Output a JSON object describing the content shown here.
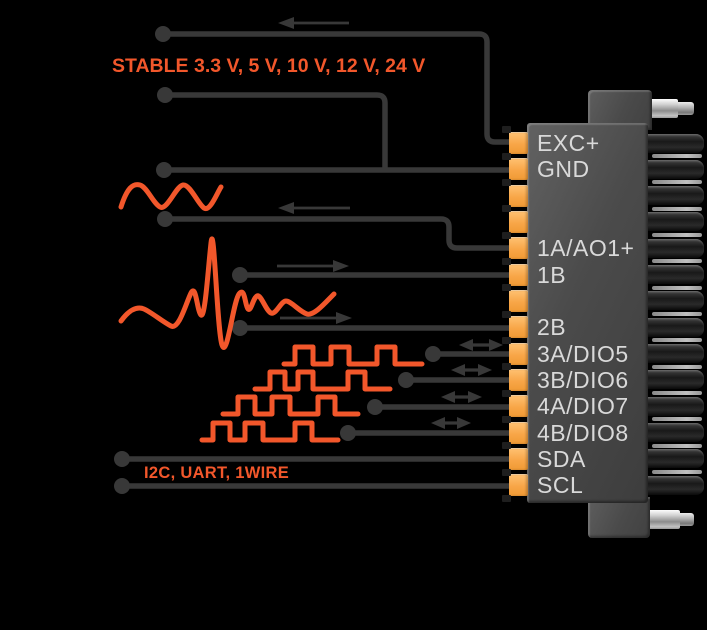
{
  "diagram": {
    "description": "Measurement module connector pinout with signal wiring",
    "annotations": {
      "stable_voltages": "STABLE 3.3 V, 5 V, 10 V, 12 V, 24 V",
      "serial_protocols": "I2C, UART, 1WIRE"
    },
    "colors": {
      "background": "#000000",
      "signal_accent_orange": "#F2572B",
      "pin_accent_orange": "#F8A648",
      "wire_gray": "#383838",
      "connector_body_gray": "#4B4B4B",
      "pin_label_text": "#D9D9D9",
      "metal_pin_silver": "#C2C2C2"
    },
    "symbols": {
      "left_arrow": "signal into module (input)",
      "right_arrow": "signal out of module (output)",
      "double_arrow": "bidirectional digital I/O",
      "sine_wave": "analog excitation/output waveform",
      "burst_wave": "analog measured signal waveform",
      "square_wave": "digital pulse waveform"
    },
    "connector": {
      "pins": [
        {
          "label": "EXC+",
          "wire": true,
          "arrow": "in",
          "waveform": null
        },
        {
          "label": "GND",
          "wire": true,
          "arrow": "none",
          "waveform": null
        },
        {
          "label": "",
          "wire": false,
          "arrow": "none",
          "waveform": null
        },
        {
          "label": "",
          "wire": false,
          "arrow": "none",
          "waveform": null
        },
        {
          "label": "1A/AO1+",
          "wire": true,
          "arrow": "in",
          "waveform": "sine"
        },
        {
          "label": "1B",
          "wire": true,
          "arrow": "out",
          "waveform": "burst"
        },
        {
          "label": "",
          "wire": false,
          "arrow": "none",
          "waveform": null
        },
        {
          "label": "2B",
          "wire": true,
          "arrow": "out",
          "waveform": "burst"
        },
        {
          "label": "3A/DIO5",
          "wire": true,
          "arrow": "bidirectional",
          "waveform": "square"
        },
        {
          "label": "3B/DIO6",
          "wire": true,
          "arrow": "bidirectional",
          "waveform": "square"
        },
        {
          "label": "4A/DIO7",
          "wire": true,
          "arrow": "bidirectional",
          "waveform": "square"
        },
        {
          "label": "4B/DIO8",
          "wire": true,
          "arrow": "bidirectional",
          "waveform": "square"
        },
        {
          "label": "SDA",
          "wire": true,
          "arrow": "none",
          "waveform": null
        },
        {
          "label": "SCL",
          "wire": true,
          "arrow": "none",
          "waveform": null
        }
      ]
    }
  }
}
